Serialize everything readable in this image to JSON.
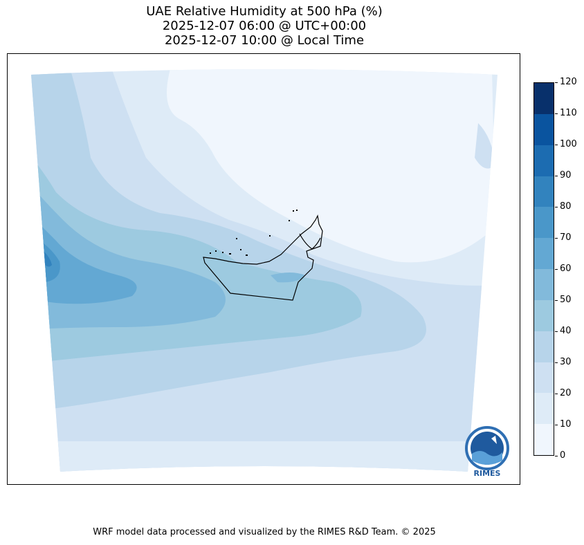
{
  "title": {
    "line1": "UAE Relative Humidity at 500 hPa (%)",
    "line2": "2025-12-07 06:00 @ UTC+00:00",
    "line3": "2025-12-07 10:00 @ Local Time"
  },
  "colorbar": {
    "ticks": [
      "0",
      "10",
      "20",
      "30",
      "40",
      "50",
      "60",
      "70",
      "80",
      "90",
      "100",
      "110",
      "120"
    ],
    "colors": [
      "#f0f6fd",
      "#deebf7",
      "#cee0f2",
      "#b7d4ea",
      "#9dcae0",
      "#82badb",
      "#63a8d3",
      "#4a97c9",
      "#3283be",
      "#1c6cb1",
      "#0a549f",
      "#08306b"
    ]
  },
  "logo": {
    "text": "RIMES"
  },
  "footer": "WRF model data processed and visualized by the RIMES R&D Team. © 2025"
}
